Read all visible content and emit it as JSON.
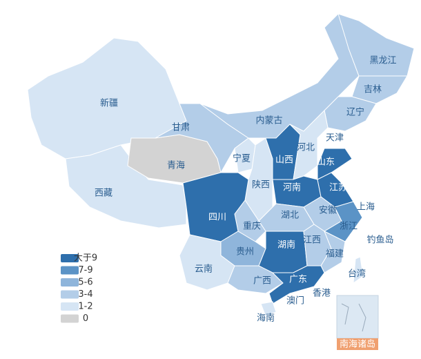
{
  "legend": [
    {
      "label": "大于9",
      "color": "#2e6fac"
    },
    {
      "label": "7-9",
      "color": "#5b93c6"
    },
    {
      "label": "5-6",
      "color": "#8fb5db"
    },
    {
      "label": "3-4",
      "color": "#b3cde8"
    },
    {
      "label": "1-2",
      "color": "#d6e5f4"
    },
    {
      "label": "0",
      "color": "#d3d3d3"
    }
  ],
  "provinces": [
    {
      "name": "新疆",
      "range": "1-2"
    },
    {
      "name": "西藏",
      "range": "1-2"
    },
    {
      "name": "青海",
      "range": "0"
    },
    {
      "name": "甘肃",
      "range": "3-4"
    },
    {
      "name": "内蒙古",
      "range": "3-4"
    },
    {
      "name": "黑龙江",
      "range": "3-4"
    },
    {
      "name": "吉林",
      "range": "3-4"
    },
    {
      "name": "辽宁",
      "range": "3-4"
    },
    {
      "name": "宁夏",
      "range": "1-2"
    },
    {
      "name": "陕西",
      "range": "1-2"
    },
    {
      "name": "山西",
      "range": "大于9"
    },
    {
      "name": "河北",
      "range": "1-2"
    },
    {
      "name": "山东",
      "range": "大于9"
    },
    {
      "name": "河南",
      "range": "大于9"
    },
    {
      "name": "江苏",
      "range": "大于9"
    },
    {
      "name": "安徽",
      "range": "3-4"
    },
    {
      "name": "湖北",
      "range": "3-4"
    },
    {
      "name": "浙江",
      "range": "7-9"
    },
    {
      "name": "重庆",
      "range": "3-4"
    },
    {
      "name": "四川",
      "range": "大于9"
    },
    {
      "name": "贵州",
      "range": "5-6"
    },
    {
      "name": "湖南",
      "range": "大于9"
    },
    {
      "name": "江西",
      "range": "3-4"
    },
    {
      "name": "福建",
      "range": "3-4"
    },
    {
      "name": "云南",
      "range": "1-2"
    },
    {
      "name": "广西",
      "range": "3-4"
    },
    {
      "name": "广东",
      "range": "大于9"
    },
    {
      "name": "海南",
      "range": "1-2"
    },
    {
      "name": "台湾",
      "range": "1-2"
    }
  ],
  "labels": [
    "天津",
    "上海",
    "香港",
    "澳门",
    "钓鱼岛"
  ],
  "inset_label": "南海诸岛"
}
